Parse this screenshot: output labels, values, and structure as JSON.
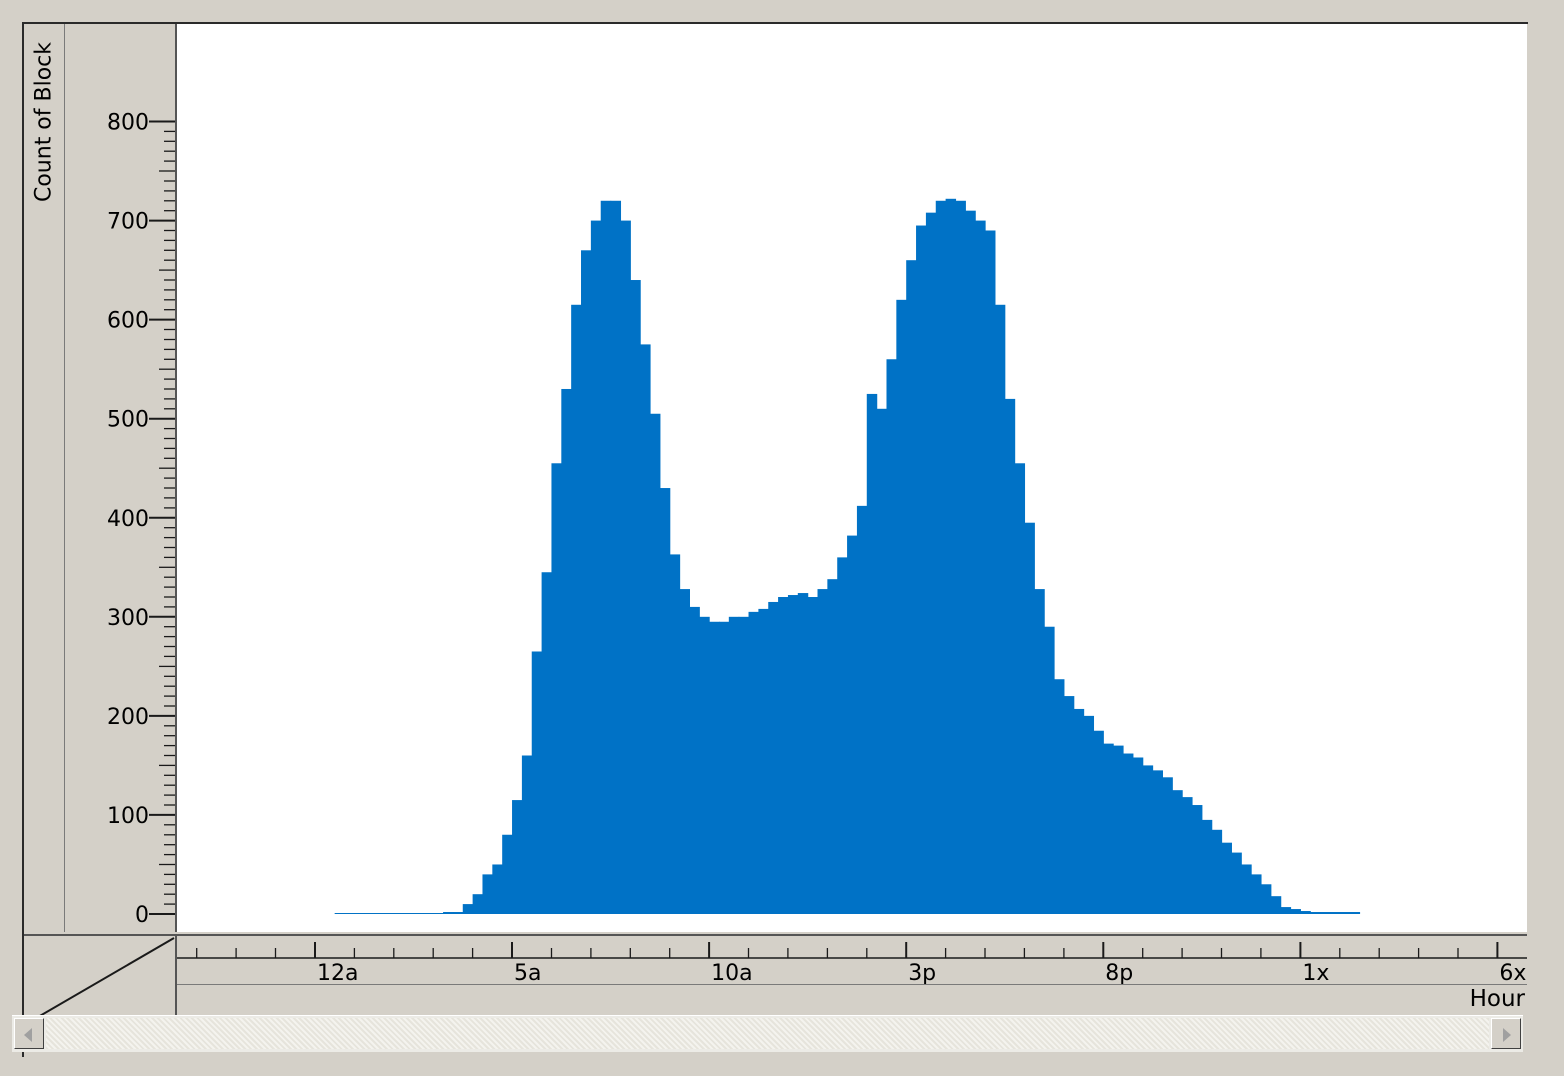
{
  "chart_data": {
    "type": "bar",
    "title": "",
    "xlabel": "Hour",
    "ylabel": "Count of Block",
    "ylim": [
      0,
      810
    ],
    "bar_color": "#0072c6",
    "grid": false,
    "y_ticks": [
      0,
      100,
      200,
      300,
      400,
      500,
      600,
      700,
      800
    ],
    "x_tick_labels": [
      "12a",
      "5a",
      "10a",
      "3p",
      "8p",
      "1x",
      "6x"
    ],
    "bins_per_hour": 4,
    "range_hours": [
      -3.5,
      30.75
    ],
    "values": [
      0,
      0,
      0,
      0,
      0,
      0,
      0,
      0,
      0,
      0,
      0,
      0,
      0,
      0,
      0,
      0,
      1,
      1,
      1,
      1,
      1,
      1,
      1,
      1,
      1,
      1,
      1,
      2,
      2,
      10,
      20,
      40,
      50,
      80,
      115,
      160,
      265,
      345,
      455,
      530,
      615,
      670,
      700,
      720,
      720,
      700,
      640,
      575,
      505,
      430,
      363,
      328,
      310,
      300,
      295,
      295,
      300,
      300,
      305,
      308,
      315,
      320,
      322,
      324,
      320,
      328,
      338,
      360,
      382,
      412,
      525,
      510,
      560,
      620,
      660,
      695,
      708,
      720,
      722,
      720,
      710,
      700,
      690,
      615,
      520,
      455,
      395,
      328,
      290,
      237,
      220,
      207,
      200,
      185,
      172,
      170,
      162,
      158,
      150,
      145,
      138,
      125,
      118,
      110,
      95,
      85,
      72,
      62,
      50,
      40,
      30,
      18,
      7,
      5,
      3,
      2,
      2,
      2,
      2,
      2,
      0,
      0,
      0,
      0,
      0,
      0,
      0,
      0,
      0,
      0,
      0,
      0,
      0,
      0,
      0,
      0,
      0
    ]
  },
  "scrollbar": {
    "left_arrow_icon": "left-arrow-icon",
    "right_arrow_icon": "right-arrow-icon"
  }
}
